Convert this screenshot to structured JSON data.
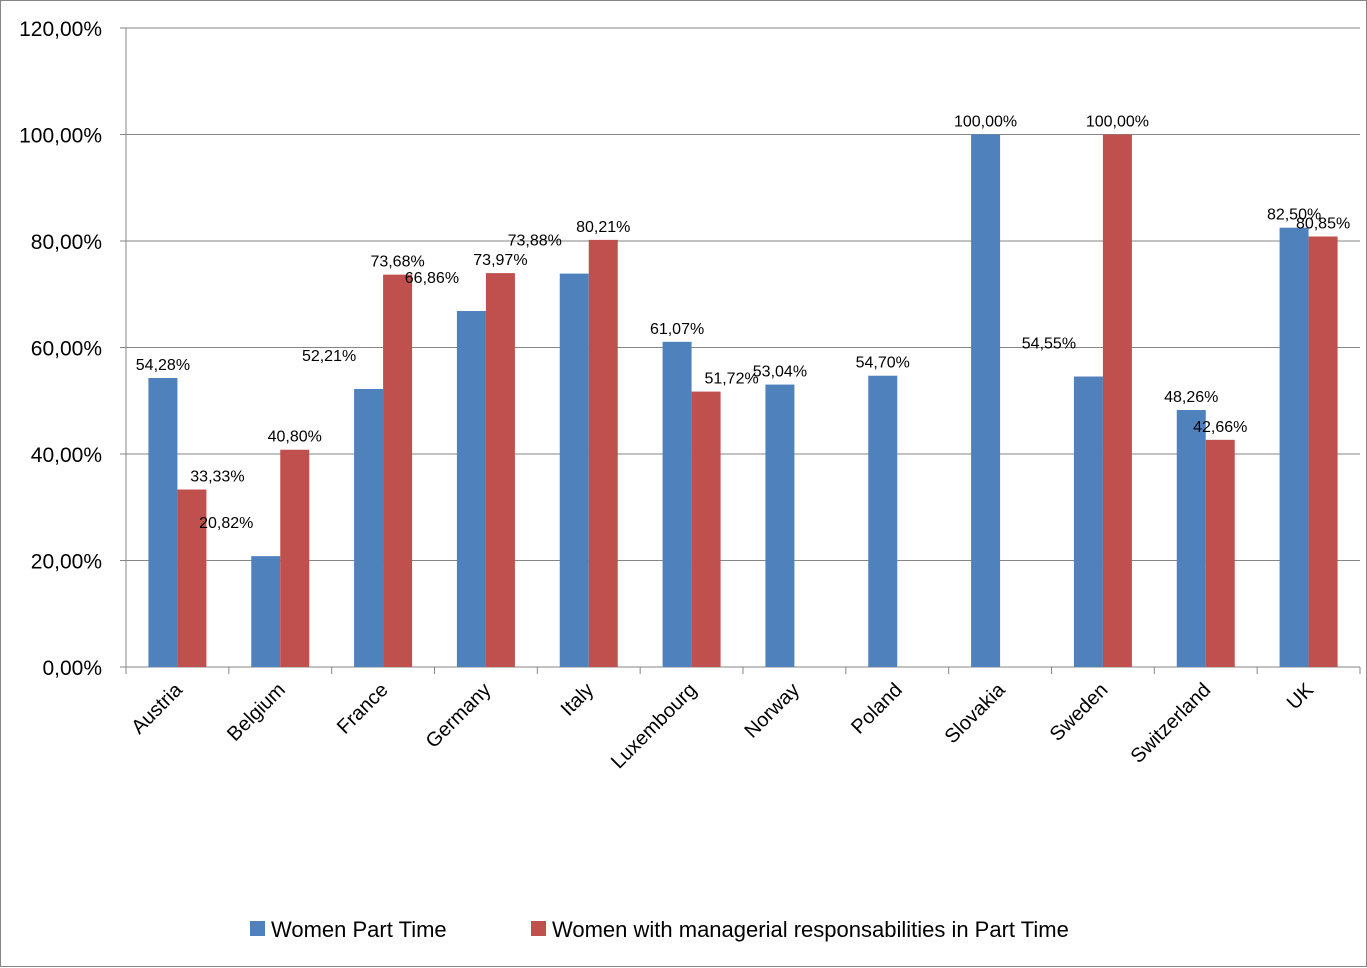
{
  "chart_data": {
    "type": "bar",
    "categories": [
      "Austria",
      "Belgium",
      "France",
      "Germany",
      "Italy",
      "Luxembourg",
      "Norway",
      "Poland",
      "Slovakia",
      "Sweden",
      "Switzerland",
      "UK"
    ],
    "series": [
      {
        "name": "Women Part Time",
        "color": "#4F81BD",
        "values": [
          54.28,
          20.82,
          52.21,
          66.86,
          73.88,
          61.07,
          53.04,
          54.7,
          100.0,
          54.55,
          48.26,
          82.5
        ],
        "labels": [
          "54,28%",
          "20,82%",
          "52,21%",
          "66,86%",
          "73,88%",
          "61,07%",
          "53,04%",
          "54,70%",
          "100,00%",
          "54,55%",
          "48,26%",
          "82,50%"
        ]
      },
      {
        "name": "Women with managerial responsabilities in Part Time",
        "color": "#C0504D",
        "values": [
          33.33,
          40.8,
          73.68,
          73.97,
          80.21,
          51.72,
          null,
          null,
          null,
          100.0,
          42.66,
          80.85
        ],
        "labels": [
          "33,33%",
          "40,80%",
          "73,68%",
          "73,97%",
          "80,21%",
          "51,72%",
          null,
          null,
          null,
          "100,00%",
          "42,66%",
          "80,85%"
        ]
      }
    ],
    "ylim": [
      0,
      120
    ],
    "yticks": [
      0,
      20,
      40,
      60,
      80,
      100,
      120
    ],
    "ytick_labels": [
      "0,00%",
      "20,00%",
      "40,00%",
      "60,00%",
      "80,00%",
      "100,00%",
      "120,00%"
    ],
    "grid": true,
    "legend_position": "bottom"
  }
}
